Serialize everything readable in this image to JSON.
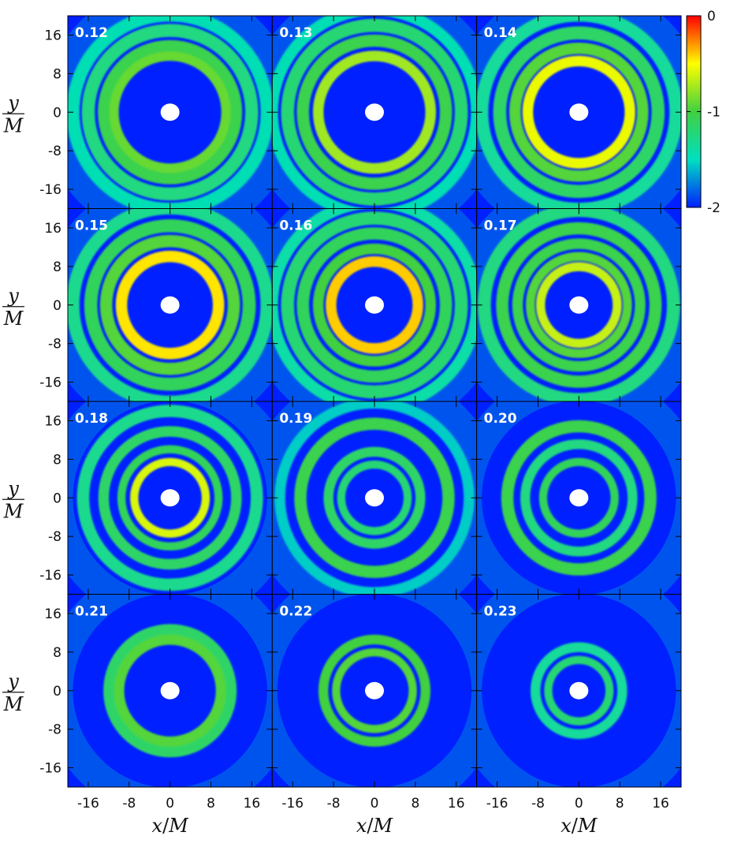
{
  "chart_data": {
    "type": "heatmap",
    "panels": [
      "0.12",
      "0.13",
      "0.14",
      "0.15",
      "0.16",
      "0.17",
      "0.18",
      "0.19",
      "0.20",
      "0.21",
      "0.22",
      "0.23"
    ],
    "grid": {
      "rows": 4,
      "cols": 3
    },
    "x_ticks": [
      "-16",
      "-8",
      "0",
      "8",
      "16"
    ],
    "y_ticks": [
      "16",
      "8",
      "0",
      "-8",
      "-16"
    ],
    "xlim": [
      -20,
      20
    ],
    "ylim": [
      -20,
      20
    ],
    "xlabel_num": "x",
    "xlabel_den": "M",
    "ylabel_num": "y",
    "ylabel_den": "M",
    "colorbar": {
      "range": [
        -2,
        0
      ],
      "ticks": [
        "0",
        "-1",
        "-2"
      ],
      "colors": [
        "#0020ff",
        "#00e0c0",
        "#40d040",
        "#ffff00",
        "#ff0000"
      ]
    },
    "rings": [
      [
        {
          "r": 11,
          "w": 1.2,
          "v": -0.9
        },
        {
          "r": 13,
          "w": 1.4,
          "v": -1.05
        },
        {
          "r": 16,
          "w": 1.6,
          "v": -1.25
        },
        {
          "r": 19,
          "w": 1.6,
          "v": -1.45
        }
      ],
      [
        {
          "r": 11,
          "w": 1.3,
          "v": -0.75
        },
        {
          "r": 14,
          "w": 1.5,
          "v": -1.05
        },
        {
          "r": 17,
          "w": 1.6,
          "v": -1.2
        },
        {
          "r": 20,
          "w": 1.4,
          "v": -1.45
        }
      ],
      [
        {
          "r": 10,
          "w": 1.3,
          "v": -0.55
        },
        {
          "r": 12.5,
          "w": 1.4,
          "v": -0.95
        },
        {
          "r": 15.5,
          "w": 1.6,
          "v": -1.15
        },
        {
          "r": 19,
          "w": 1.6,
          "v": -1.35
        }
      ],
      [
        {
          "r": 9.5,
          "w": 1.4,
          "v": -0.45
        },
        {
          "r": 12.5,
          "w": 1.5,
          "v": -0.95
        },
        {
          "r": 15.5,
          "w": 1.6,
          "v": -1.1
        },
        {
          "r": 19,
          "w": 1.6,
          "v": -1.3
        }
      ],
      [
        {
          "r": 8.5,
          "w": 1.3,
          "v": -0.4
        },
        {
          "r": 11,
          "w": 1.3,
          "v": -1.0
        },
        {
          "r": 14,
          "w": 1.5,
          "v": -1.1
        },
        {
          "r": 17,
          "w": 1.6,
          "v": -1.2
        },
        {
          "r": 20,
          "w": 1.4,
          "v": -1.4
        }
      ],
      [
        {
          "r": 7.5,
          "w": 1.1,
          "v": -0.65
        },
        {
          "r": 9.5,
          "w": 1.1,
          "v": -0.95
        },
        {
          "r": 12,
          "w": 1.3,
          "v": -1.05
        },
        {
          "r": 15,
          "w": 1.5,
          "v": -1.05
        },
        {
          "r": 18.5,
          "w": 1.6,
          "v": -1.25
        }
      ],
      [
        {
          "r": 7,
          "w": 1.0,
          "v": -0.6
        },
        {
          "r": 9.5,
          "w": 1.0,
          "v": -1.1
        },
        {
          "r": 13,
          "w": 1.3,
          "v": -1.15
        },
        {
          "r": 17,
          "w": 1.5,
          "v": -1.3
        }
      ],
      [
        {
          "r": 6.5,
          "w": 1.0,
          "v": -1.2
        },
        {
          "r": 9,
          "w": 1.2,
          "v": -1.15
        },
        {
          "r": 14.5,
          "w": 1.5,
          "v": -1.05
        },
        {
          "r": 18.5,
          "w": 1.3,
          "v": -1.55
        }
      ],
      [
        {
          "r": 7,
          "w": 1.0,
          "v": -1.1
        },
        {
          "r": 10.5,
          "w": 1.2,
          "v": -1.25
        },
        {
          "r": 14,
          "w": 1.5,
          "v": -1.05
        }
      ],
      [
        {
          "r": 10,
          "w": 1.3,
          "v": -0.95
        },
        {
          "r": 12,
          "w": 1.3,
          "v": -1.15
        }
      ],
      [
        {
          "r": 7.5,
          "w": 1.0,
          "v": -0.95
        },
        {
          "r": 10,
          "w": 1.2,
          "v": -1.0
        }
      ],
      [
        {
          "r": 6,
          "w": 1.0,
          "v": -1.2
        },
        {
          "r": 8.5,
          "w": 1.2,
          "v": -1.35
        }
      ]
    ]
  }
}
